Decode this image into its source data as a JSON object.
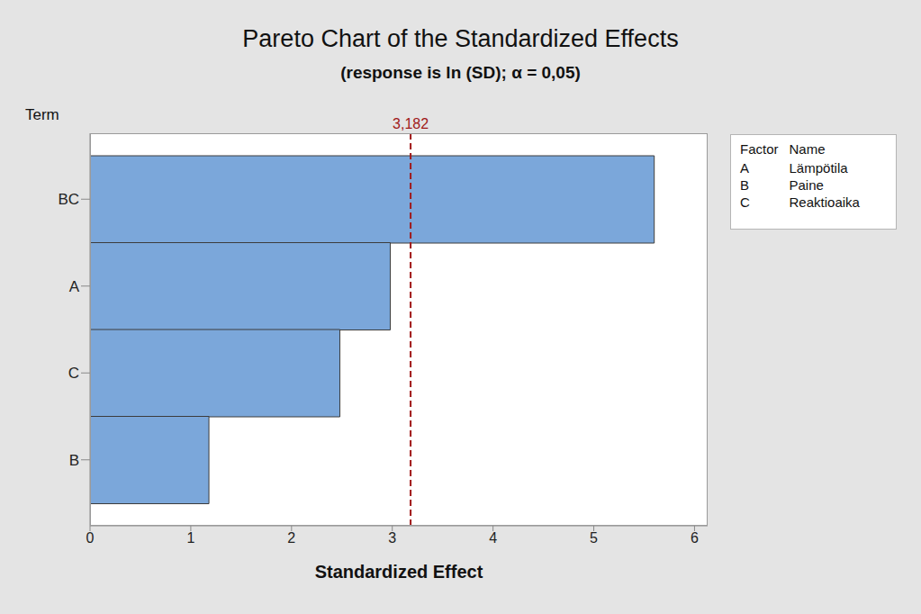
{
  "chart_data": {
    "type": "bar",
    "title": "Pareto Chart of the Standardized Effects",
    "subtitle": "(response is ln (SD); α = 0,05)",
    "orientation": "horizontal",
    "y_label": "Term",
    "x_label": "Standardized Effect",
    "categories": [
      "BC",
      "A",
      "C",
      "B"
    ],
    "values": [
      5.6,
      2.98,
      2.48,
      1.18
    ],
    "color": "#7ba7da",
    "xlim": [
      0,
      6.13
    ],
    "xticks": [
      0,
      1,
      2,
      3,
      4,
      5,
      6
    ],
    "grid": false,
    "reference_line": {
      "value": 3.182,
      "label": "3,182",
      "color": "#a01818"
    },
    "factor_table": {
      "headers": [
        "Factor",
        "Name"
      ],
      "rows": [
        [
          "A",
          "Lämpötila"
        ],
        [
          "B",
          "Paine"
        ],
        [
          "C",
          "Reaktioaika"
        ]
      ]
    }
  }
}
